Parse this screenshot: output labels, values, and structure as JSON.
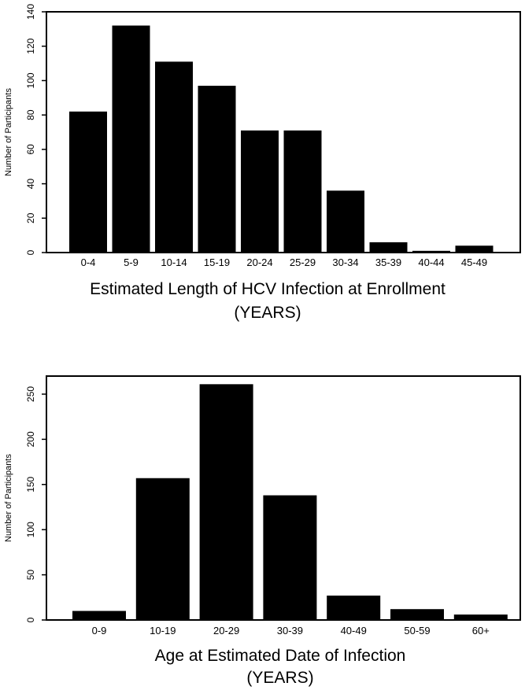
{
  "chart_data": [
    {
      "type": "bar",
      "title": "",
      "xlabel": "Estimated Length of HCV Infection at Enrollment",
      "xlabel_unit": "(YEARS)",
      "ylabel": "Number of Participants",
      "categories": [
        "0-4",
        "5-9",
        "10-14",
        "15-19",
        "20-24",
        "25-29",
        "30-34",
        "35-39",
        "40-44",
        "45-49"
      ],
      "values": [
        82,
        132,
        111,
        97,
        71,
        71,
        36,
        6,
        1,
        4
      ],
      "ylim": [
        0,
        140
      ],
      "yticks": [
        "0",
        "20",
        "40",
        "60",
        "80",
        "100",
        "120",
        "140"
      ],
      "grid": false,
      "bar_color": "#000000"
    },
    {
      "type": "bar",
      "title": "",
      "xlabel": "Age at Estimated Date of Infection",
      "xlabel_unit": "(YEARS)",
      "ylabel": "Number of Participants",
      "categories": [
        "0-9",
        "10-19",
        "20-29",
        "30-39",
        "40-49",
        "50-59",
        "60+"
      ],
      "values": [
        10,
        157,
        261,
        138,
        27,
        12,
        6
      ],
      "ylim": [
        0,
        270
      ],
      "yticks": [
        "0",
        "50",
        "100",
        "150",
        "200",
        "250"
      ],
      "grid": false,
      "bar_color": "#000000"
    }
  ]
}
